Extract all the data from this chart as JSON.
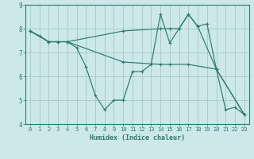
{
  "title": "",
  "xlabel": "Humidex (Indice chaleur)",
  "bg_color": "#cce8ea",
  "grid_color": "#aacccc",
  "line_color": "#2d7a6b",
  "xlim": [
    -0.5,
    23.5
  ],
  "ylim": [
    4,
    9
  ],
  "xticks": [
    0,
    1,
    2,
    3,
    4,
    5,
    6,
    7,
    8,
    9,
    10,
    11,
    12,
    13,
    14,
    15,
    16,
    17,
    18,
    19,
    20,
    21,
    22,
    23
  ],
  "yticks": [
    4,
    5,
    6,
    7,
    8,
    9
  ],
  "lines": [
    {
      "x": [
        0,
        1,
        2,
        3,
        4,
        5,
        6,
        7,
        8,
        9,
        10,
        11,
        12,
        13,
        14,
        15,
        16,
        17,
        18,
        19,
        20,
        21,
        22,
        23
      ],
      "y": [
        7.9,
        7.7,
        7.45,
        7.45,
        7.45,
        7.2,
        6.4,
        5.2,
        4.6,
        5.0,
        5.0,
        6.2,
        6.2,
        6.5,
        8.6,
        7.4,
        8.0,
        8.6,
        8.1,
        8.2,
        6.3,
        4.6,
        4.7,
        4.4
      ]
    },
    {
      "x": [
        0,
        2,
        3,
        4,
        10,
        14,
        15,
        16,
        17,
        18,
        20,
        23
      ],
      "y": [
        7.9,
        7.45,
        7.45,
        7.45,
        7.9,
        8.0,
        8.0,
        8.0,
        8.6,
        8.1,
        6.3,
        4.4
      ]
    },
    {
      "x": [
        0,
        2,
        3,
        4,
        10,
        14,
        15,
        17,
        20,
        23
      ],
      "y": [
        7.9,
        7.45,
        7.45,
        7.45,
        6.6,
        6.5,
        6.5,
        6.5,
        6.3,
        4.4
      ]
    }
  ]
}
